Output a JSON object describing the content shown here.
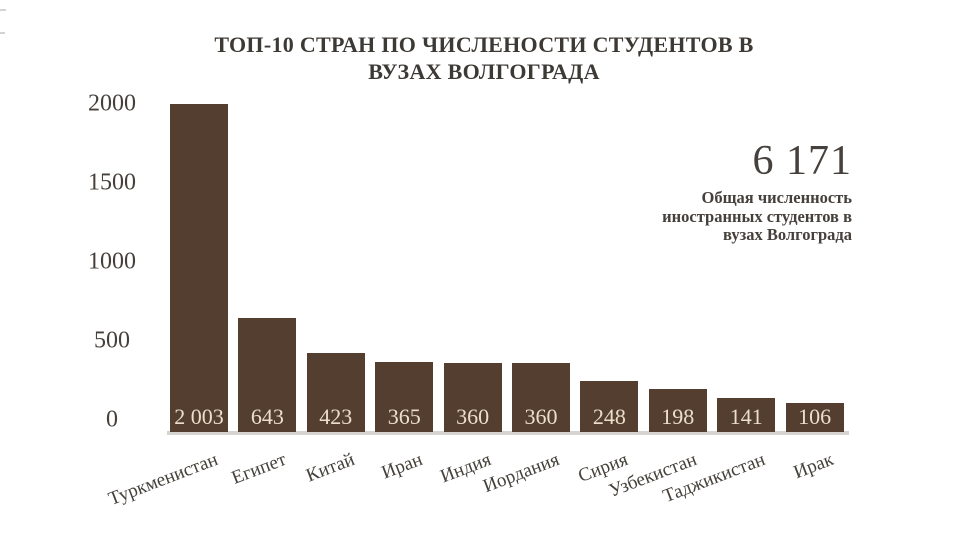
{
  "chart_data": {
    "type": "bar",
    "title": "ТОП-10 СТРАН ПО ЧИСЛЕНОСТИ СТУДЕНТОВ В ВУЗАХ ВОЛГОГРАДА",
    "title_lines": [
      "ТОП-10 СТРАН ПО ЧИСЛЕНОСТИ СТУДЕНТОВ В",
      "ВУЗАХ ВОЛГОГРАДА"
    ],
    "categories": [
      "Туркменистан",
      "Египет",
      "Китай",
      "Иран",
      "Индия",
      "Иордания",
      "Сирия",
      "Узбекистан",
      "Таджикистан",
      "Ирак"
    ],
    "values": [
      2003,
      643,
      423,
      365,
      360,
      360,
      248,
      198,
      141,
      106
    ],
    "value_labels": [
      "2 003",
      "643",
      "423",
      "365",
      "360",
      "360",
      "248",
      "198",
      "141",
      "106"
    ],
    "xlabel": "",
    "ylabel": "",
    "ylim": [
      0,
      2003
    ],
    "yticks": [
      2000,
      1500,
      1000,
      500,
      0
    ],
    "ytick_labels": [
      "2000",
      "1500",
      "1000",
      "500",
      "0"
    ],
    "grid": false,
    "legend": "none",
    "bar_label_position": "inside-bottom"
  },
  "annotation": {
    "total": "6 171",
    "caption": "Общая численность иностранных студентов в вузах Волгограда",
    "caption_lines": [
      "Общая численность",
      "иностранных студентов в",
      "вузах Волгограда"
    ]
  },
  "colors": {
    "background": "#ffffff",
    "bar": "#533e30",
    "bar_value_label": "#ecdfca",
    "title_text": "#3d3935",
    "axis_text": "#46403b",
    "baseline": "#d6d4d1"
  }
}
